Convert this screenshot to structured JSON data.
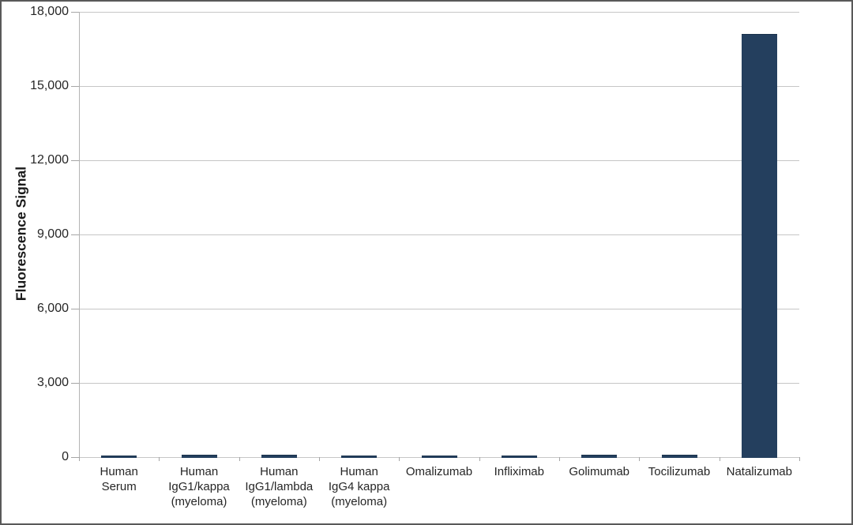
{
  "chart_data": {
    "type": "bar",
    "categories": [
      "Human\nSerum",
      "Human\nIgG1/kappa\n(myeloma)",
      "Human\nIgG1/lambda\n(myeloma)",
      "Human\nIgG4 kappa\n(myeloma)",
      "Omalizumab",
      "Infliximab",
      "Golimumab",
      "Tocilizumab",
      "Natalizumab"
    ],
    "values": [
      50,
      90,
      100,
      60,
      55,
      60,
      80,
      85,
      17100
    ],
    "title": "",
    "xlabel": "",
    "ylabel": "Fluorescence Signal",
    "ylim": [
      0,
      18000
    ],
    "ytick_step": 3000,
    "ytick_labels": [
      "0",
      "3,000",
      "6,000",
      "9,000",
      "12,000",
      "15,000",
      "18,000"
    ],
    "grid": true,
    "legend": false,
    "bar_color": "#243f5e",
    "gridline_color": "#c6c6c6",
    "frame_color": "#595959"
  }
}
